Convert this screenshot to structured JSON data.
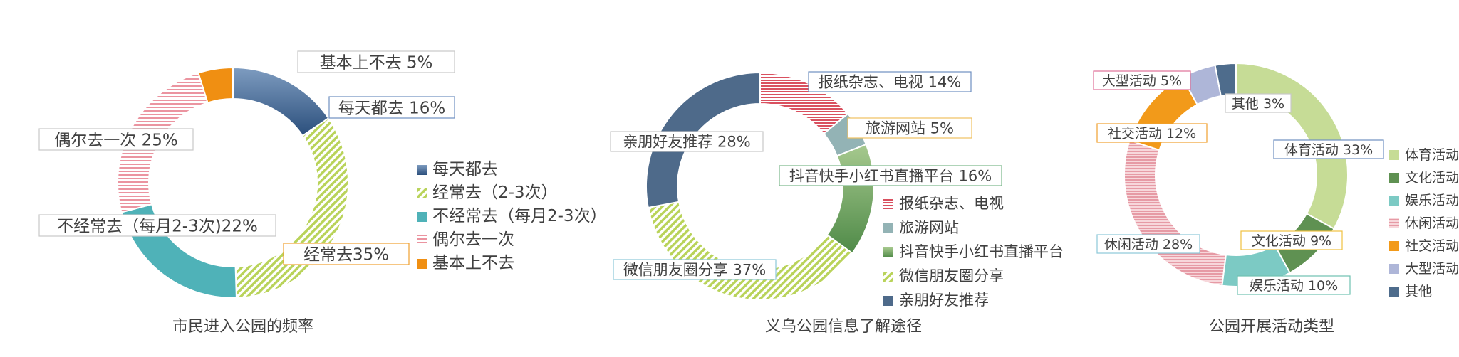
{
  "colors": {
    "freq": [
      "#2e5380",
      "#c2d86b",
      "#4fb2b8",
      "#e88a98",
      "#f08f12"
    ],
    "info": [
      "#e37686",
      "#93b3b5",
      "#5d9a55",
      "#c2d86b",
      "#4e6a8a"
    ],
    "act": [
      "#c6dc96",
      "#5f9152",
      "#7ccac4",
      "#eca3ad",
      "#f29a1a",
      "#aeb6d8",
      "#4e6c8c"
    ]
  },
  "chart_data": [
    {
      "type": "pie",
      "donut": true,
      "title": "市民进入公园的频率",
      "categories": [
        "每天都去",
        "经常去（2-3次）",
        "不经常去（每月2-3次）",
        "偶尔去一次",
        "基本上不去"
      ],
      "values": [
        16,
        35,
        22,
        25,
        5
      ],
      "data_labels": [
        "每天都去 16%",
        "经常去35%",
        "不经常去（每月2-3次)22%",
        "偶尔去一次 25%",
        "基本上不去 5%"
      ],
      "legend_position": "right"
    },
    {
      "type": "pie",
      "donut": true,
      "title": "义乌公园信息了解途径",
      "categories": [
        "报纸杂志、电视",
        "旅游网站",
        "抖音快手小红书直播平台",
        "微信朋友圈分享",
        "亲朋好友推荐"
      ],
      "values": [
        14,
        5,
        16,
        37,
        28
      ],
      "data_labels": [
        "报纸杂志、电视 14%",
        "旅游网站 5%",
        "抖音快手小红书直播平台 16%",
        "微信朋友圈分享 37%",
        "亲朋好友推荐 28%"
      ],
      "legend_position": "right"
    },
    {
      "type": "pie",
      "donut": true,
      "title": "公园开展活动类型",
      "categories": [
        "体育活动",
        "文化活动",
        "娱乐活动",
        "休闲活动",
        "社交活动",
        "大型活动",
        "其他"
      ],
      "values": [
        33,
        9,
        10,
        28,
        12,
        5,
        3
      ],
      "data_labels": [
        "体育活动 33%",
        "文化活动 9%",
        "娱乐活动 10%",
        "休闲活动 28%",
        "社交活动 12%",
        "大型活动 5%",
        "其他 3%"
      ],
      "legend_position": "right"
    }
  ]
}
